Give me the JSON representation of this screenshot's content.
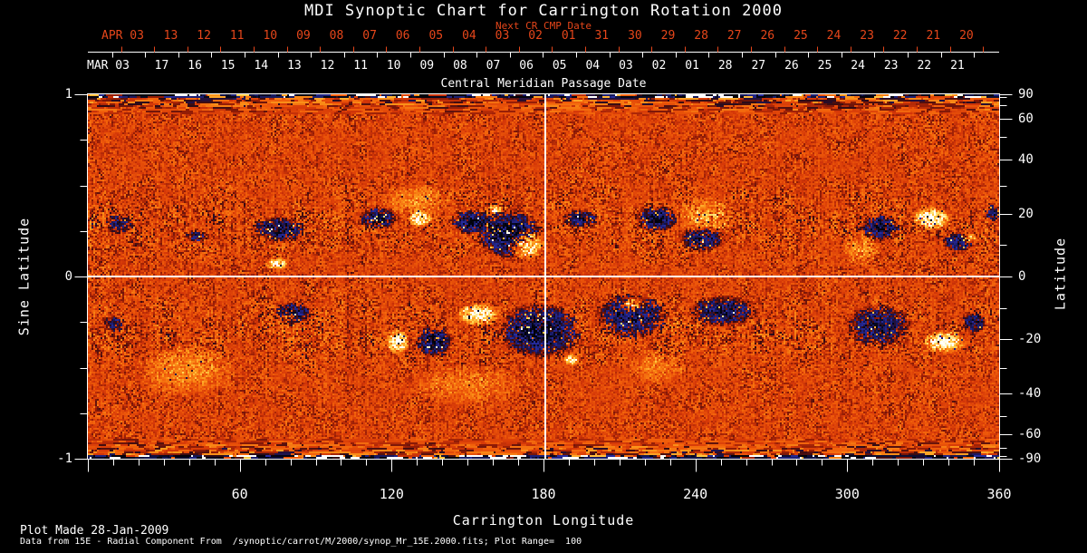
{
  "title": "MDI Synoptic Chart for Carrington Rotation 2000",
  "colors": {
    "background": "#000000",
    "text": "#ffffff",
    "accent_red": "#e6461a",
    "grid_line": "#ffffff"
  },
  "top_axis": {
    "subtitle": "Next CR CMP Date",
    "next_month_label": "APR 03",
    "next_days": [
      "13",
      "12",
      "11",
      "10",
      "09",
      "08",
      "07",
      "06",
      "05",
      "04",
      "03",
      "02",
      "01",
      "31",
      "30",
      "29",
      "28",
      "27",
      "26",
      "25",
      "24",
      "23",
      "22",
      "21",
      "20"
    ],
    "this_month_label": "MAR 03",
    "this_days": [
      "17",
      "16",
      "15",
      "14",
      "13",
      "12",
      "11",
      "10",
      "09",
      "08",
      "07",
      "06",
      "05",
      "04",
      "03",
      "02",
      "01",
      "28",
      "27",
      "26",
      "25",
      "24",
      "23",
      "22",
      "21"
    ],
    "caption": "Central Meridian Passage Date"
  },
  "x_axis": {
    "title": "Carrington Longitude",
    "range": [
      0,
      360
    ],
    "major_tick_values": [
      0,
      60,
      120,
      180,
      240,
      300,
      360
    ],
    "labeled_ticks": [
      60,
      120,
      180,
      240,
      300,
      360
    ],
    "tick_labels": [
      "60",
      "120",
      "180",
      "240",
      "300",
      "360"
    ],
    "minor_step": 10
  },
  "y_axis_left": {
    "title": "Sine Latitude",
    "range": [
      1,
      -1
    ],
    "major_tick_values": [
      1,
      0,
      -1
    ],
    "tick_labels": [
      "1",
      "0",
      "-1"
    ],
    "minor_tick_values": [
      0.75,
      0.5,
      0.25,
      -0.25,
      -0.5,
      -0.75
    ]
  },
  "y_axis_right": {
    "title": "Latitude",
    "major_tick_values": [
      90,
      60,
      40,
      20,
      0,
      -20,
      -40,
      -60,
      -90
    ],
    "tick_labels": [
      "90",
      "60",
      "40",
      "20",
      "0",
      "-20",
      "-40",
      "-60",
      "-90"
    ],
    "minor_tick_values": [
      80,
      70,
      50,
      30,
      10,
      -10,
      -30,
      -50,
      -70,
      -80
    ]
  },
  "footer": {
    "line1": "Plot Made 28-Jan-2009",
    "line2": "Data from 15E - Radial Component From  /synoptic/carrot/M/2000/synop_Mr_15E.2000.fits; Plot Range=  100"
  },
  "chart_data": {
    "type": "heatmap",
    "title": "MDI Synoptic Chart for Carrington Rotation 2000",
    "description": "Full-surface solar radial magnetic field synoptic map for Carrington rotation 2000. Quiet sun renders as red-orange noise; positive flux as yellow-to-white; negative flux as dark maroon, black and blue. White crosshair lines mark longitude 180 and sine latitude 0. Noisy blue/black streaked bands at both poles.",
    "x_range": [
      0,
      360
    ],
    "y_range": [
      -1,
      1
    ],
    "plot_range_gauss": 100,
    "crosshair": {
      "longitude": 180,
      "sine_latitude": 0
    },
    "values_estimated": true,
    "palette": [
      [
        -1.0,
        [
          2,
          2,
          10
        ]
      ],
      [
        -0.8,
        [
          8,
          10,
          40
        ]
      ],
      [
        -0.55,
        [
          38,
          44,
          160
        ]
      ],
      [
        -0.38,
        [
          28,
          22,
          90
        ]
      ],
      [
        -0.25,
        [
          45,
          10,
          20
        ]
      ],
      [
        -0.12,
        [
          140,
          26,
          6
        ]
      ],
      [
        0.0,
        [
          212,
          55,
          8
        ]
      ],
      [
        0.18,
        [
          240,
          92,
          10
        ]
      ],
      [
        0.4,
        [
          252,
          150,
          26
        ]
      ],
      [
        0.62,
        [
          255,
          212,
          80
        ]
      ],
      [
        0.82,
        [
          255,
          243,
          175
        ]
      ],
      [
        1.0,
        [
          255,
          255,
          255
        ]
      ]
    ],
    "active_regions": [
      {
        "lon": 75.5,
        "slat": 0.26,
        "rl_deg": 10.7,
        "rh_slat": 0.075,
        "polarity": -1,
        "strength": 0.85
      },
      {
        "lon": 74.4,
        "slat": 0.07,
        "rl_deg": 4.7,
        "rh_slat": 0.035,
        "polarity": 1,
        "strength": 0.9
      },
      {
        "lon": 42.2,
        "slat": 0.22,
        "rl_deg": 4.7,
        "rh_slat": 0.035,
        "polarity": -1,
        "strength": 0.55
      },
      {
        "lon": 114.5,
        "slat": 0.32,
        "rl_deg": 8.2,
        "rh_slat": 0.065,
        "polarity": -1,
        "strength": 0.8
      },
      {
        "lon": 131.0,
        "slat": 0.32,
        "rl_deg": 5.4,
        "rh_slat": 0.05,
        "polarity": 1,
        "strength": 0.85
      },
      {
        "lon": 151.4,
        "slat": 0.3,
        "rl_deg": 8.9,
        "rh_slat": 0.07,
        "polarity": -1,
        "strength": 0.9
      },
      {
        "lon": 166.4,
        "slat": 0.23,
        "rl_deg": 13.4,
        "rh_slat": 0.137,
        "polarity": -1,
        "strength": 1.0
      },
      {
        "lon": 172.9,
        "slat": 0.18,
        "rl_deg": 7.5,
        "rh_slat": 0.09,
        "polarity": 1,
        "strength": 1.05
      },
      {
        "lon": 160.3,
        "slat": 0.37,
        "rl_deg": 3.2,
        "rh_slat": 0.03,
        "polarity": 1,
        "strength": 0.8
      },
      {
        "lon": 194.3,
        "slat": 0.32,
        "rl_deg": 7.5,
        "rh_slat": 0.055,
        "polarity": -1,
        "strength": 0.65
      },
      {
        "lon": 224.7,
        "slat": 0.32,
        "rl_deg": 8.9,
        "rh_slat": 0.075,
        "polarity": -1,
        "strength": 0.8
      },
      {
        "lon": 242.6,
        "slat": 0.21,
        "rl_deg": 9.8,
        "rh_slat": 0.075,
        "polarity": -1,
        "strength": 0.75
      },
      {
        "lon": 313.1,
        "slat": 0.27,
        "rl_deg": 8.6,
        "rh_slat": 0.075,
        "polarity": -1,
        "strength": 0.8
      },
      {
        "lon": 333.2,
        "slat": 0.32,
        "rl_deg": 8.1,
        "rh_slat": 0.065,
        "polarity": 1,
        "strength": 1.0
      },
      {
        "lon": 343.5,
        "slat": 0.19,
        "rl_deg": 6.4,
        "rh_slat": 0.055,
        "polarity": -1,
        "strength": 0.8
      },
      {
        "lon": 348.0,
        "slat": 0.21,
        "rl_deg": 3.0,
        "rh_slat": 0.03,
        "polarity": 1,
        "strength": 0.8
      },
      {
        "lon": 357.0,
        "slat": 0.35,
        "rl_deg": 3.5,
        "rh_slat": 0.05,
        "polarity": -1,
        "strength": 0.7
      },
      {
        "lon": 12.0,
        "slat": 0.29,
        "rl_deg": 6.0,
        "rh_slat": 0.06,
        "polarity": -1,
        "strength": 0.5
      },
      {
        "lon": 244.0,
        "slat": 0.33,
        "rl_deg": 12.0,
        "rh_slat": 0.12,
        "polarity": 1,
        "strength": 0.33
      },
      {
        "lon": 305.0,
        "slat": 0.15,
        "rl_deg": 8.0,
        "rh_slat": 0.1,
        "polarity": 1,
        "strength": 0.3
      },
      {
        "lon": 130.0,
        "slat": 0.42,
        "rl_deg": 15.0,
        "rh_slat": 0.1,
        "polarity": 1,
        "strength": 0.28
      },
      {
        "lon": 80.5,
        "slat": -0.2,
        "rl_deg": 7.9,
        "rh_slat": 0.065,
        "polarity": -1,
        "strength": 0.7
      },
      {
        "lon": 79.1,
        "slat": -0.22,
        "rl_deg": 2.9,
        "rh_slat": 0.025,
        "polarity": 1,
        "strength": 0.7
      },
      {
        "lon": 122.0,
        "slat": -0.36,
        "rl_deg": 5.0,
        "rh_slat": 0.075,
        "polarity": 1,
        "strength": 0.95
      },
      {
        "lon": 136.3,
        "slat": -0.36,
        "rl_deg": 7.9,
        "rh_slat": 0.09,
        "polarity": -1,
        "strength": 0.85
      },
      {
        "lon": 153.9,
        "slat": -0.21,
        "rl_deg": 9.3,
        "rh_slat": 0.065,
        "polarity": 1,
        "strength": 0.9
      },
      {
        "lon": 178.2,
        "slat": -0.3,
        "rl_deg": 17.0,
        "rh_slat": 0.16,
        "polarity": -1,
        "strength": 0.9
      },
      {
        "lon": 190.7,
        "slat": -0.46,
        "rl_deg": 3.6,
        "rh_slat": 0.035,
        "polarity": 1,
        "strength": 0.8
      },
      {
        "lon": 214.0,
        "slat": -0.22,
        "rl_deg": 15.2,
        "rh_slat": 0.135,
        "polarity": -1,
        "strength": 0.75
      },
      {
        "lon": 215.1,
        "slat": -0.16,
        "rl_deg": 5.4,
        "rh_slat": 0.05,
        "polarity": 1,
        "strength": 0.9
      },
      {
        "lon": 250.5,
        "slat": -0.19,
        "rl_deg": 14.3,
        "rh_slat": 0.09,
        "polarity": -1,
        "strength": 0.75
      },
      {
        "lon": 311.7,
        "slat": -0.27,
        "rl_deg": 13.4,
        "rh_slat": 0.125,
        "polarity": -1,
        "strength": 0.7
      },
      {
        "lon": 338.2,
        "slat": -0.36,
        "rl_deg": 9.3,
        "rh_slat": 0.065,
        "polarity": 1,
        "strength": 0.9
      },
      {
        "lon": 350.0,
        "slat": -0.25,
        "rl_deg": 5.4,
        "rh_slat": 0.06,
        "polarity": -1,
        "strength": 0.7
      },
      {
        "lon": 10.0,
        "slat": -0.26,
        "rl_deg": 5.0,
        "rh_slat": 0.05,
        "polarity": -1,
        "strength": 0.45
      },
      {
        "lon": 38.6,
        "slat": -0.52,
        "rl_deg": 21.5,
        "rh_slat": 0.15,
        "polarity": 1,
        "strength": 0.3
      },
      {
        "lon": 150.0,
        "slat": -0.6,
        "rl_deg": 25.0,
        "rh_slat": 0.12,
        "polarity": 1,
        "strength": 0.22
      },
      {
        "lon": 225.0,
        "slat": -0.5,
        "rl_deg": 12.0,
        "rh_slat": 0.1,
        "polarity": 1,
        "strength": 0.25
      }
    ]
  }
}
